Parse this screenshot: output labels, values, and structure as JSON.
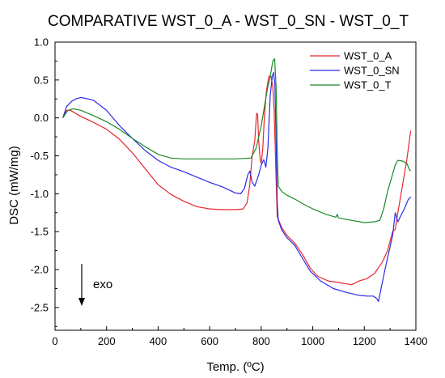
{
  "chart_data": {
    "type": "line",
    "title": "COMPARATIVE WST_0_A - WST_0_SN - WST_0_T",
    "xlabel": "Temp. (ºC)",
    "ylabel": "DSC (mW/mg)",
    "xlim": [
      0,
      1400
    ],
    "ylim": [
      -2.8,
      1.0
    ],
    "x_ticks": [
      0,
      200,
      400,
      600,
      800,
      1000,
      1200,
      1400
    ],
    "x_tick_labels": [
      "0",
      "200",
      "400",
      "600",
      "800",
      "1000",
      "1200",
      "1400"
    ],
    "y_ticks": [
      1.0,
      0.5,
      0.0,
      -0.5,
      -1.0,
      -1.5,
      -2.0,
      -2.5
    ],
    "y_tick_labels": [
      "1.0",
      "0.5",
      "0.0",
      "-0.5",
      "-1.0",
      "-1.5",
      "-2.0",
      "-2.5"
    ],
    "grid": false,
    "legend_position": "top-right",
    "annotation": {
      "text": "exo",
      "arrow": "down"
    },
    "series": [
      {
        "name": "WST_0_A",
        "color": "#e8262d",
        "points": [
          [
            30,
            0.0
          ],
          [
            45,
            0.1
          ],
          [
            60,
            0.1
          ],
          [
            100,
            0.02
          ],
          [
            150,
            -0.06
          ],
          [
            200,
            -0.15
          ],
          [
            250,
            -0.28
          ],
          [
            300,
            -0.46
          ],
          [
            350,
            -0.67
          ],
          [
            400,
            -0.88
          ],
          [
            450,
            -1.01
          ],
          [
            500,
            -1.1
          ],
          [
            550,
            -1.17
          ],
          [
            600,
            -1.2
          ],
          [
            650,
            -1.21
          ],
          [
            700,
            -1.21
          ],
          [
            730,
            -1.2
          ],
          [
            745,
            -1.12
          ],
          [
            755,
            -0.9
          ],
          [
            765,
            -0.5
          ],
          [
            775,
            -0.3
          ],
          [
            782,
            0.06
          ],
          [
            786,
            0.05
          ],
          [
            790,
            -0.3
          ],
          [
            796,
            -0.55
          ],
          [
            800,
            -0.6
          ],
          [
            806,
            -0.4
          ],
          [
            812,
            0.0
          ],
          [
            820,
            0.35
          ],
          [
            830,
            0.55
          ],
          [
            838,
            0.55
          ],
          [
            845,
            0.4
          ],
          [
            850,
            0.1
          ],
          [
            856,
            -0.6
          ],
          [
            862,
            -1.3
          ],
          [
            880,
            -1.45
          ],
          [
            900,
            -1.55
          ],
          [
            930,
            -1.65
          ],
          [
            960,
            -1.8
          ],
          [
            990,
            -1.98
          ],
          [
            1020,
            -2.09
          ],
          [
            1060,
            -2.15
          ],
          [
            1100,
            -2.17
          ],
          [
            1150,
            -2.2
          ],
          [
            1180,
            -2.15
          ],
          [
            1210,
            -2.12
          ],
          [
            1240,
            -2.05
          ],
          [
            1270,
            -1.9
          ],
          [
            1290,
            -1.75
          ],
          [
            1310,
            -1.5
          ],
          [
            1320,
            -1.47
          ],
          [
            1330,
            -1.25
          ],
          [
            1340,
            -1.05
          ],
          [
            1350,
            -0.85
          ],
          [
            1365,
            -0.55
          ],
          [
            1375,
            -0.3
          ],
          [
            1380,
            -0.17
          ]
        ]
      },
      {
        "name": "WST_0_SN",
        "color": "#2a2ae6",
        "points": [
          [
            30,
            0.0
          ],
          [
            45,
            0.15
          ],
          [
            65,
            0.22
          ],
          [
            80,
            0.25
          ],
          [
            100,
            0.27
          ],
          [
            130,
            0.25
          ],
          [
            150,
            0.23
          ],
          [
            200,
            0.1
          ],
          [
            250,
            -0.1
          ],
          [
            300,
            -0.27
          ],
          [
            350,
            -0.43
          ],
          [
            400,
            -0.56
          ],
          [
            450,
            -0.65
          ],
          [
            500,
            -0.71
          ],
          [
            550,
            -0.78
          ],
          [
            600,
            -0.85
          ],
          [
            650,
            -0.91
          ],
          [
            700,
            -0.99
          ],
          [
            720,
            -1.0
          ],
          [
            735,
            -0.93
          ],
          [
            748,
            -0.75
          ],
          [
            756,
            -0.7
          ],
          [
            765,
            -0.85
          ],
          [
            775,
            -0.9
          ],
          [
            790,
            -0.75
          ],
          [
            800,
            -0.62
          ],
          [
            810,
            -0.55
          ],
          [
            818,
            -0.65
          ],
          [
            826,
            -0.4
          ],
          [
            835,
            0.3
          ],
          [
            843,
            0.55
          ],
          [
            848,
            0.6
          ],
          [
            853,
            0.45
          ],
          [
            858,
            -0.3
          ],
          [
            862,
            -1.1
          ],
          [
            866,
            -1.35
          ],
          [
            880,
            -1.48
          ],
          [
            900,
            -1.58
          ],
          [
            930,
            -1.68
          ],
          [
            960,
            -1.85
          ],
          [
            990,
            -2.02
          ],
          [
            1030,
            -2.15
          ],
          [
            1080,
            -2.25
          ],
          [
            1130,
            -2.3
          ],
          [
            1180,
            -2.34
          ],
          [
            1210,
            -2.35
          ],
          [
            1235,
            -2.35
          ],
          [
            1248,
            -2.38
          ],
          [
            1255,
            -2.42
          ],
          [
            1265,
            -2.25
          ],
          [
            1280,
            -2.0
          ],
          [
            1300,
            -1.7
          ],
          [
            1310,
            -1.55
          ],
          [
            1320,
            -1.25
          ],
          [
            1330,
            -1.37
          ],
          [
            1340,
            -1.3
          ],
          [
            1355,
            -1.2
          ],
          [
            1370,
            -1.08
          ],
          [
            1380,
            -1.04
          ]
        ]
      },
      {
        "name": "WST_0_T",
        "color": "#1a8a2a",
        "points": [
          [
            30,
            0.0
          ],
          [
            50,
            0.1
          ],
          [
            70,
            0.12
          ],
          [
            100,
            0.1
          ],
          [
            150,
            0.03
          ],
          [
            200,
            -0.05
          ],
          [
            250,
            -0.15
          ],
          [
            300,
            -0.27
          ],
          [
            350,
            -0.38
          ],
          [
            400,
            -0.48
          ],
          [
            450,
            -0.53
          ],
          [
            500,
            -0.54
          ],
          [
            550,
            -0.54
          ],
          [
            600,
            -0.54
          ],
          [
            650,
            -0.54
          ],
          [
            700,
            -0.54
          ],
          [
            760,
            -0.53
          ],
          [
            780,
            -0.4
          ],
          [
            800,
            -0.1
          ],
          [
            815,
            0.2
          ],
          [
            825,
            0.4
          ],
          [
            835,
            0.55
          ],
          [
            845,
            0.75
          ],
          [
            852,
            0.78
          ],
          [
            858,
            0.4
          ],
          [
            862,
            -0.4
          ],
          [
            866,
            -0.9
          ],
          [
            880,
            -0.97
          ],
          [
            900,
            -1.02
          ],
          [
            930,
            -1.07
          ],
          [
            960,
            -1.13
          ],
          [
            1000,
            -1.2
          ],
          [
            1050,
            -1.27
          ],
          [
            1090,
            -1.31
          ],
          [
            1095,
            -1.27
          ],
          [
            1100,
            -1.32
          ],
          [
            1150,
            -1.35
          ],
          [
            1200,
            -1.38
          ],
          [
            1240,
            -1.37
          ],
          [
            1260,
            -1.35
          ],
          [
            1275,
            -1.2
          ],
          [
            1290,
            -0.97
          ],
          [
            1305,
            -0.8
          ],
          [
            1320,
            -0.62
          ],
          [
            1330,
            -0.56
          ],
          [
            1350,
            -0.57
          ],
          [
            1365,
            -0.6
          ],
          [
            1375,
            -0.68
          ],
          [
            1380,
            -0.7
          ]
        ]
      }
    ]
  }
}
